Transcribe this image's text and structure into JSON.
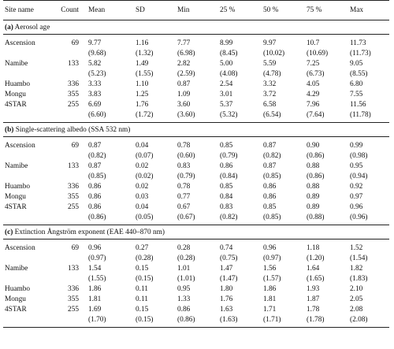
{
  "headers": [
    "Site name",
    "Count",
    "Mean",
    "SD",
    "Min",
    "25 %",
    "50 %",
    "75 %",
    "Max"
  ],
  "sections": [
    {
      "title": "(a) Aerosol age",
      "bold_prefix": "(a)",
      "title_rest": " Aerosol age",
      "rows": [
        {
          "site": "Ascension",
          "count": "69",
          "values": [
            "9.77",
            "1.16",
            "7.77",
            "8.99",
            "9.97",
            "10.7",
            "11.73"
          ],
          "paren": [
            "(9.68)",
            "(1.32)",
            "(6.98)",
            "(8.45)",
            "(10.02)",
            "(10.69)",
            "(11.73)"
          ]
        },
        {
          "site": "Namibe",
          "count": "133",
          "values": [
            "5.82",
            "1.49",
            "2.82",
            "5.00",
            "5.59",
            "7.25",
            "9.05"
          ],
          "paren": [
            "(5.23)",
            "(1.55)",
            "(2.59)",
            "(4.08)",
            "(4.78)",
            "(6.73)",
            "(8.55)"
          ]
        },
        {
          "site": "Huambo",
          "count": "336",
          "values": [
            "3.33",
            "1.10",
            "0.87",
            "2.54",
            "3.32",
            "4.05",
            "6.80"
          ],
          "paren": null
        },
        {
          "site": "Mongu",
          "count": "355",
          "values": [
            "3.83",
            "1.25",
            "1.09",
            "3.01",
            "3.72",
            "4.29",
            "7.55"
          ],
          "paren": null
        },
        {
          "site": "4STAR",
          "count": "255",
          "values": [
            "6.69",
            "1.76",
            "3.60",
            "5.37",
            "6.58",
            "7.96",
            "11.56"
          ],
          "paren": [
            "(6.60)",
            "(1.72)",
            "(3.60)",
            "(5.32)",
            "(6.54)",
            "(7.64)",
            "(11.78)"
          ]
        }
      ]
    },
    {
      "title": "(b) Single-scattering albedo (SSA 532 nm)",
      "bold_prefix": "(b)",
      "title_rest": " Single-scattering albedo (SSA 532 nm)",
      "rows": [
        {
          "site": "Ascension",
          "count": "69",
          "values": [
            "0.87",
            "0.04",
            "0.78",
            "0.85",
            "0.87",
            "0.90",
            "0.99"
          ],
          "paren": [
            "(0.82)",
            "(0.07)",
            "(0.60)",
            "(0.79)",
            "(0.82)",
            "(0.86)",
            "(0.98)"
          ]
        },
        {
          "site": "Namibe",
          "count": "133",
          "values": [
            "0.87",
            "0.02",
            "0.83",
            "0.86",
            "0.87",
            "0.88",
            "0.95"
          ],
          "paren": [
            "(0.85)",
            "(0.02)",
            "(0.79)",
            "(0.84)",
            "(0.85)",
            "(0.86)",
            "(0.94)"
          ]
        },
        {
          "site": "Huambo",
          "count": "336",
          "values": [
            "0.86",
            "0.02",
            "0.78",
            "0.85",
            "0.86",
            "0.88",
            "0.92"
          ],
          "paren": null
        },
        {
          "site": "Mongu",
          "count": "355",
          "values": [
            "0.86",
            "0.03",
            "0.77",
            "0.84",
            "0.86",
            "0.89",
            "0.97"
          ],
          "paren": null
        },
        {
          "site": "4STAR",
          "count": "255",
          "values": [
            "0.86",
            "0.04",
            "0.67",
            "0.83",
            "0.85",
            "0.89",
            "0.96"
          ],
          "paren": [
            "(0.86)",
            "(0.05)",
            "(0.67)",
            "(0.82)",
            "(0.85)",
            "(0.88)",
            "(0.96)"
          ]
        }
      ]
    },
    {
      "title": "(c) Extinction Ångström exponent (EAE 440–870 nm)",
      "bold_prefix": "(c)",
      "title_rest": " Extinction Ångström exponent (EAE 440–870 nm)",
      "rows": [
        {
          "site": "Ascension",
          "count": "69",
          "values": [
            "0.96",
            "0.27",
            "0.28",
            "0.74",
            "0.96",
            "1.18",
            "1.52"
          ],
          "paren": [
            "(0.97)",
            "(0.28)",
            "(0.28)",
            "(0.75)",
            "(0.97)",
            "(1.20)",
            "(1.54)"
          ]
        },
        {
          "site": "Namibe",
          "count": "133",
          "values": [
            "1.54",
            "0.15",
            "1.01",
            "1.47",
            "1.56",
            "1.64",
            "1.82"
          ],
          "paren": [
            "(1.55)",
            "(0.15)",
            "(1.01)",
            "(1.47)",
            "(1.57)",
            "(1.65)",
            "(1.83)"
          ]
        },
        {
          "site": "Huambo",
          "count": "336",
          "values": [
            "1.86",
            "0.11",
            "0.95",
            "1.80",
            "1.86",
            "1.93",
            "2.10"
          ],
          "paren": null
        },
        {
          "site": "Mongu",
          "count": "355",
          "values": [
            "1.81",
            "0.11",
            "1.33",
            "1.76",
            "1.81",
            "1.87",
            "2.05"
          ],
          "paren": null
        },
        {
          "site": "4STAR",
          "count": "255",
          "values": [
            "1.69",
            "0.15",
            "0.86",
            "1.63",
            "1.71",
            "1.78",
            "2.08"
          ],
          "paren": [
            "(1.70)",
            "(0.15)",
            "(0.86)",
            "(1.63)",
            "(1.71)",
            "(1.78)",
            "(2.08)"
          ]
        }
      ]
    }
  ]
}
